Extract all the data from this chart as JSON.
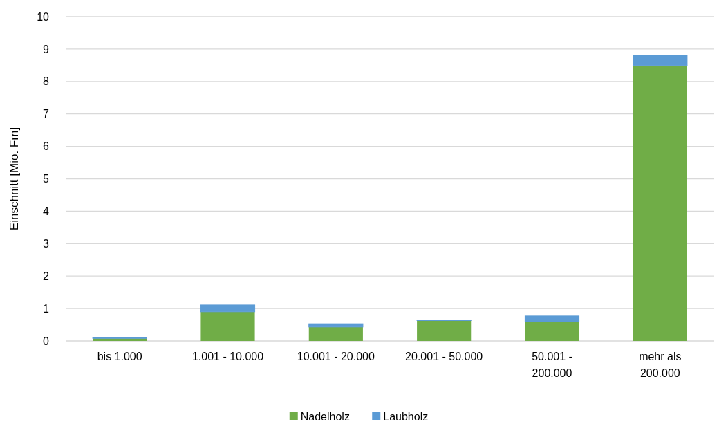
{
  "chart_data": {
    "type": "bar",
    "stacked": true,
    "ylabel": "Einschnitt [Mio. Fm]",
    "categories": [
      "bis 1.000",
      "1.001 - 10.000",
      "10.001 - 20.000",
      "20.001 - 50.000",
      "50.001 - 200.000",
      "mehr als 200.000"
    ],
    "series": [
      {
        "name": "Nadelholz",
        "color": "#70ad47",
        "values": [
          0.08,
          0.9,
          0.43,
          0.63,
          0.59,
          8.49
        ]
      },
      {
        "name": "Laubholz",
        "color": "#5b9bd5",
        "values": [
          0.02,
          0.21,
          0.1,
          0.02,
          0.18,
          0.32
        ]
      }
    ],
    "ylim": [
      0,
      10
    ],
    "yticks": [
      0,
      1,
      2,
      3,
      4,
      5,
      6,
      7,
      8,
      9,
      10
    ],
    "grid": "y",
    "legend": "bottom"
  }
}
